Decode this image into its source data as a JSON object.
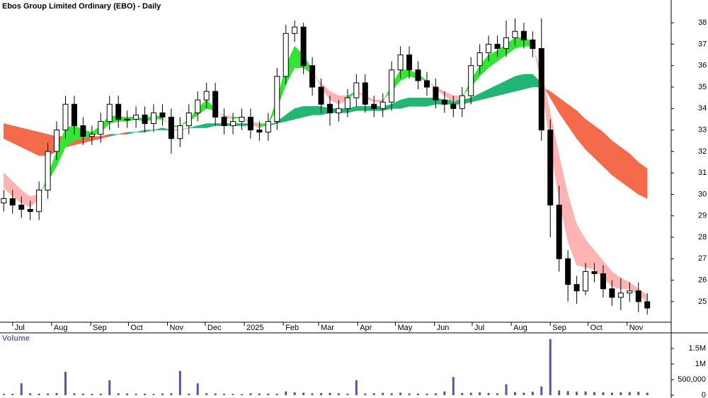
{
  "chart_data": [
    {
      "type": "candlestick",
      "title": "Ebos Group Limited Ordinary (EBO) - Daily",
      "x": [
        3,
        10,
        17,
        24,
        31,
        38,
        45,
        52,
        59,
        66,
        73,
        80,
        87,
        94,
        101,
        108,
        115,
        122,
        129,
        136,
        143,
        150,
        157,
        164,
        171,
        178,
        185,
        192,
        199,
        206,
        213,
        220,
        227,
        234,
        241,
        248,
        255,
        262,
        269,
        276,
        283,
        290,
        297,
        304,
        311,
        318,
        325,
        332,
        339,
        346,
        353,
        360,
        367,
        374,
        381,
        388,
        395,
        402,
        409,
        416,
        423,
        430,
        437,
        444,
        451,
        458,
        465,
        472,
        479,
        486,
        493,
        500,
        507,
        514
      ],
      "open": [
        29.6,
        29.8,
        29.5,
        29.3,
        29.2,
        30.2,
        32.0,
        33.0,
        34.2,
        33.2,
        32.7,
        32.8,
        33.4,
        34.2,
        33.5,
        33.5,
        33.7,
        33.3,
        33.8,
        33.6,
        32.6,
        33.2,
        33.8,
        34.4,
        34.8,
        33.6,
        33.2,
        33.4,
        33.6,
        33.0,
        32.9,
        33.4,
        35.5,
        37.5,
        37.8,
        36.0,
        35.0,
        34.2,
        33.8,
        34.0,
        34.5,
        35.2,
        34.2,
        34.0,
        34.3,
        35.8,
        36.5,
        35.8,
        35.3,
        35.0,
        34.4,
        34.2,
        34.0,
        34.6,
        36.0,
        36.6,
        37.0,
        36.8,
        37.3,
        37.6,
        37.2,
        36.8,
        33.0,
        29.5,
        27.0,
        25.8,
        25.5,
        26.4,
        26.3,
        25.6,
        25.2,
        25.4,
        25.5,
        25.0
      ],
      "high": [
        30.2,
        30.2,
        29.9,
        29.7,
        30.6,
        32.4,
        33.4,
        34.6,
        34.6,
        33.6,
        33.2,
        33.8,
        34.6,
        34.6,
        33.9,
        34.1,
        34.1,
        34.2,
        34.2,
        34.0,
        33.6,
        34.2,
        34.8,
        35.2,
        35.2,
        34.0,
        33.8,
        34.0,
        34.0,
        33.4,
        33.8,
        35.9,
        37.9,
        38.1,
        38.0,
        36.4,
        35.4,
        34.6,
        34.4,
        34.9,
        35.6,
        35.6,
        34.6,
        34.7,
        36.2,
        36.9,
        36.9,
        36.2,
        35.7,
        35.4,
        34.8,
        34.6,
        35.0,
        36.4,
        37.0,
        37.4,
        37.4,
        38.1,
        38.2,
        38.0,
        37.6,
        38.2,
        33.5,
        30.4,
        27.4,
        26.2,
        26.8,
        26.8,
        26.7,
        26.0,
        26.1,
        25.9,
        25.9,
        25.4
      ],
      "low": [
        29.2,
        29.1,
        28.9,
        28.8,
        28.8,
        29.8,
        31.6,
        32.6,
        32.8,
        32.3,
        32.3,
        32.4,
        33.0,
        33.1,
        33.1,
        33.1,
        32.9,
        32.9,
        33.2,
        31.9,
        32.2,
        32.8,
        33.4,
        34.0,
        33.2,
        32.8,
        32.8,
        33.0,
        32.6,
        32.5,
        32.5,
        33.0,
        35.1,
        37.1,
        35.6,
        34.6,
        33.8,
        33.2,
        33.4,
        33.6,
        34.1,
        33.8,
        33.6,
        33.6,
        33.9,
        35.4,
        35.4,
        34.9,
        34.6,
        34.0,
        33.8,
        33.6,
        33.6,
        34.2,
        35.6,
        36.2,
        36.4,
        36.4,
        36.9,
        36.8,
        36.4,
        32.5,
        28.0,
        26.4,
        25.0,
        24.9,
        25.3,
        25.9,
        25.2,
        24.8,
        24.6,
        25.0,
        24.5,
        24.4
      ],
      "close": [
        29.8,
        29.5,
        29.3,
        29.2,
        30.2,
        32.0,
        33.0,
        34.2,
        33.2,
        32.7,
        32.8,
        33.4,
        34.2,
        33.5,
        33.5,
        33.7,
        33.3,
        33.8,
        33.6,
        32.6,
        33.2,
        33.8,
        34.4,
        34.8,
        33.6,
        33.2,
        33.4,
        33.6,
        33.0,
        32.9,
        33.4,
        35.5,
        37.5,
        37.8,
        36.0,
        35.0,
        34.2,
        33.8,
        34.0,
        34.5,
        35.2,
        34.2,
        34.0,
        34.3,
        35.8,
        36.5,
        35.8,
        35.3,
        35.0,
        34.4,
        34.2,
        34.0,
        34.6,
        36.0,
        36.6,
        37.0,
        36.8,
        37.3,
        37.6,
        37.2,
        36.8,
        33.0,
        29.5,
        27.0,
        25.8,
        25.5,
        26.4,
        26.3,
        25.6,
        25.2,
        25.4,
        25.5,
        25.0,
        24.7
      ],
      "up_color": "#ffffff",
      "down_color": "#000000",
      "color": "#000000",
      "bands": [
        {
          "fast": [
            32.6,
            32.4,
            32.2,
            32.0,
            31.8,
            31.8,
            32.0,
            32.2,
            32.3,
            32.4,
            32.5,
            32.6,
            32.7,
            32.8,
            32.8,
            32.9,
            33.0,
            33.0,
            33.1,
            33.0,
            33.0,
            33.1,
            33.2,
            33.3,
            33.3,
            33.3,
            33.3,
            33.3,
            33.3,
            33.2,
            33.2,
            33.4,
            33.7,
            34.0,
            34.1,
            34.1,
            34.1,
            34.0,
            34.0,
            34.0,
            34.1,
            34.1,
            34.1,
            34.1,
            34.2,
            34.4,
            34.5,
            34.5,
            34.5,
            34.5,
            34.4,
            34.4,
            34.4,
            34.5,
            34.7,
            34.9,
            35.1,
            35.3,
            35.5,
            35.6,
            35.6,
            35.2,
            34.5,
            33.8,
            33.2,
            32.6,
            32.1,
            31.7,
            31.3,
            30.9,
            30.6,
            30.3,
            30.0,
            29.8
          ],
          "slow": [
            33.3,
            33.2,
            33.1,
            33.0,
            32.9,
            32.8,
            32.7,
            32.7,
            32.7,
            32.7,
            32.7,
            32.7,
            32.8,
            32.8,
            32.9,
            32.9,
            32.9,
            33.0,
            33.0,
            33.0,
            33.0,
            33.1,
            33.1,
            33.1,
            33.2,
            33.2,
            33.2,
            33.2,
            33.2,
            33.2,
            33.2,
            33.3,
            33.4,
            33.5,
            33.6,
            33.7,
            33.7,
            33.8,
            33.8,
            33.8,
            33.9,
            33.9,
            33.9,
            33.9,
            34.0,
            34.0,
            34.1,
            34.1,
            34.1,
            34.2,
            34.2,
            34.2,
            34.2,
            34.3,
            34.4,
            34.5,
            34.6,
            34.7,
            34.8,
            34.9,
            35.0,
            35.0,
            34.8,
            34.5,
            34.2,
            33.9,
            33.5,
            33.2,
            32.9,
            32.5,
            32.2,
            31.9,
            31.5,
            31.2
          ],
          "up_color": "#22b573",
          "down_color": "#f36b4a"
        },
        {
          "fast": [
            30.3,
            29.9,
            29.6,
            29.4,
            29.8,
            30.9,
            32.0,
            33.1,
            33.2,
            33.0,
            32.9,
            33.2,
            33.7,
            33.6,
            33.6,
            33.6,
            33.5,
            33.7,
            33.6,
            33.1,
            33.2,
            33.5,
            34.0,
            34.4,
            34.0,
            33.6,
            33.5,
            33.6,
            33.3,
            33.1,
            33.3,
            34.4,
            36.0,
            36.9,
            36.5,
            35.8,
            35.0,
            34.4,
            34.2,
            34.4,
            34.8,
            34.5,
            34.3,
            34.3,
            35.1,
            35.8,
            35.8,
            35.6,
            35.3,
            34.9,
            34.6,
            34.3,
            34.5,
            35.3,
            36.0,
            36.5,
            36.7,
            37.0,
            37.3,
            37.3,
            37.1,
            35.1,
            32.3,
            29.7,
            27.8,
            26.7,
            26.6,
            26.5,
            26.1,
            25.7,
            25.6,
            25.6,
            25.3,
            25.0
          ],
          "slow": [
            31.0,
            30.6,
            30.2,
            29.9,
            30.0,
            30.6,
            31.3,
            32.2,
            32.5,
            32.6,
            32.7,
            32.9,
            33.3,
            33.4,
            33.4,
            33.5,
            33.4,
            33.5,
            33.5,
            33.2,
            33.2,
            33.4,
            33.7,
            34.0,
            33.9,
            33.7,
            33.6,
            33.6,
            33.4,
            33.3,
            33.3,
            34.0,
            35.1,
            35.9,
            35.9,
            35.6,
            35.2,
            34.8,
            34.6,
            34.6,
            34.8,
            34.6,
            34.4,
            34.4,
            34.8,
            35.3,
            35.5,
            35.4,
            35.3,
            35.0,
            34.8,
            34.6,
            34.6,
            35.0,
            35.5,
            35.9,
            36.2,
            36.5,
            36.8,
            36.9,
            36.9,
            35.7,
            33.8,
            31.8,
            30.0,
            28.6,
            27.9,
            27.4,
            26.9,
            26.4,
            26.1,
            25.9,
            25.6,
            25.3
          ],
          "up_color": "#33e633",
          "down_color": "#ffb3b3"
        }
      ],
      "xlim": [
        0,
        533
      ],
      "xticks": [
        {
          "value": 10,
          "label": "Jul"
        },
        {
          "value": 41,
          "label": "Aug"
        },
        {
          "value": 72,
          "label": "Sep"
        },
        {
          "value": 102,
          "label": "Oct"
        },
        {
          "value": 133,
          "label": "Nov"
        },
        {
          "value": 163,
          "label": "Dec"
        },
        {
          "value": 194,
          "label": "2025"
        },
        {
          "value": 225,
          "label": "Feb"
        },
        {
          "value": 253,
          "label": "Mar"
        },
        {
          "value": 284,
          "label": "Apr"
        },
        {
          "value": 314,
          "label": "May"
        },
        {
          "value": 345,
          "label": "Jun"
        },
        {
          "value": 375,
          "label": "Jul"
        },
        {
          "value": 406,
          "label": "Aug"
        },
        {
          "value": 437,
          "label": "Sep"
        },
        {
          "value": 467,
          "label": "Oct"
        },
        {
          "value": 498,
          "label": "Nov"
        }
      ],
      "ylim": [
        24.04,
        39.06
      ],
      "yticks": [
        25,
        26,
        27,
        28,
        29,
        30,
        31,
        32,
        33,
        34,
        35,
        36,
        37,
        38
      ]
    },
    {
      "type": "bar",
      "title": "Volume",
      "x": [
        3,
        10,
        17,
        24,
        31,
        38,
        45,
        52,
        59,
        66,
        73,
        80,
        87,
        94,
        101,
        108,
        115,
        122,
        129,
        136,
        143,
        150,
        157,
        164,
        171,
        178,
        185,
        192,
        199,
        206,
        213,
        220,
        227,
        234,
        241,
        248,
        255,
        262,
        269,
        276,
        283,
        290,
        297,
        304,
        311,
        318,
        325,
        332,
        339,
        346,
        353,
        360,
        367,
        374,
        381,
        388,
        395,
        402,
        409,
        416,
        423,
        430,
        437,
        444,
        451,
        458,
        465,
        472,
        479,
        486,
        493,
        500,
        507,
        514
      ],
      "values": [
        40000,
        45000,
        380000,
        60000,
        50000,
        55000,
        70000,
        750000,
        60000,
        50000,
        45000,
        50000,
        480000,
        60000,
        55000,
        45000,
        50000,
        40000,
        55000,
        60000,
        780000,
        50000,
        380000,
        60000,
        55000,
        45000,
        40000,
        35000,
        60000,
        55000,
        50000,
        45000,
        120000,
        90000,
        80000,
        60000,
        70000,
        75000,
        60000,
        50000,
        480000,
        55000,
        60000,
        75000,
        60000,
        80000,
        55000,
        50000,
        50000,
        60000,
        120000,
        580000,
        70000,
        80000,
        90000,
        70000,
        60000,
        350000,
        100000,
        80000,
        110000,
        280000,
        1800000,
        150000,
        130000,
        110000,
        120000,
        100000,
        90000,
        80000,
        90000,
        100000,
        110000,
        80000
      ],
      "color": "#5555aa",
      "xlim": [
        0,
        533
      ],
      "ylim": [
        0,
        2000000
      ],
      "yticks": [
        0,
        {
          "value": 500000,
          "label": "500,000"
        },
        {
          "value": 1000000,
          "label": "1M"
        },
        {
          "value": 1500000,
          "label": "1.5M"
        }
      ]
    }
  ]
}
